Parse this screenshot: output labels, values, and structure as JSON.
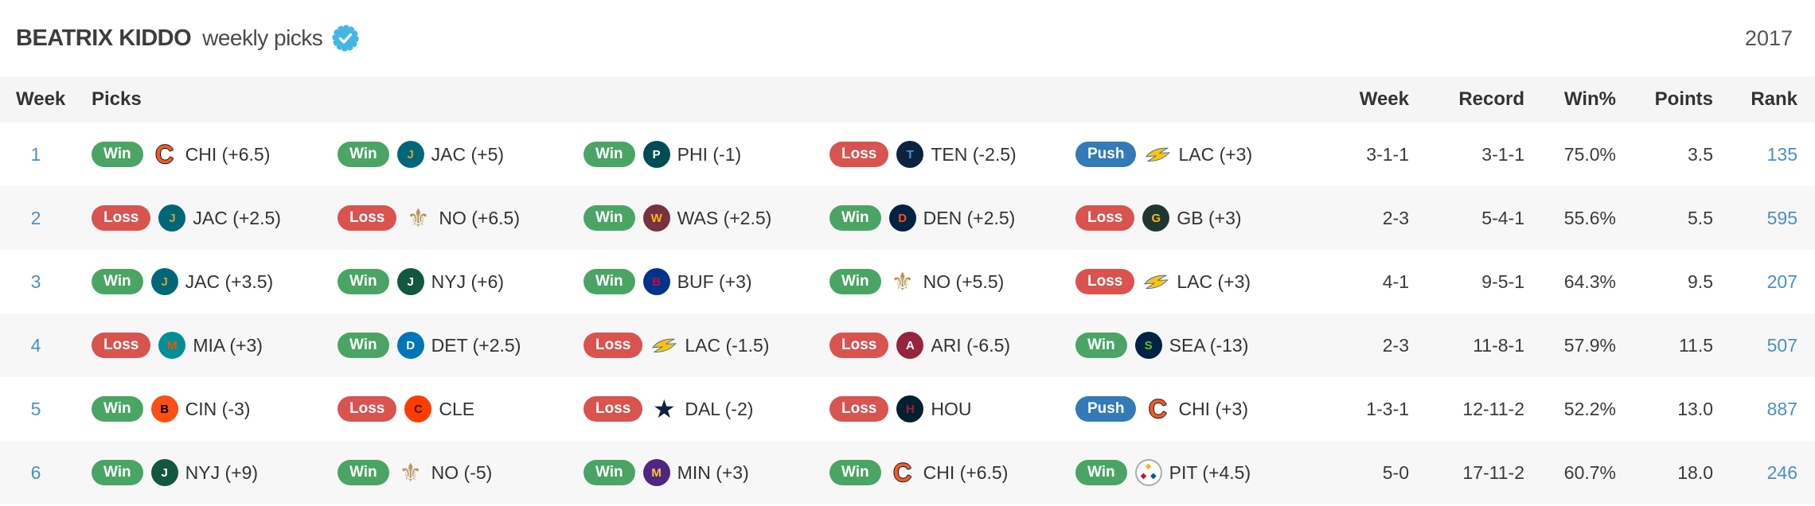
{
  "header": {
    "profile_name": "BEATRIX KIDDO",
    "subtitle": "weekly picks",
    "verified_icon": "verified-checkmark",
    "season_year": "2017"
  },
  "colors": {
    "win": "#4aa564",
    "loss": "#d9534f",
    "push": "#337ab7",
    "link": "#4a90c2",
    "seal_blue": "#41b6e6",
    "stripe": "#f7f7f7",
    "header_bg": "#f5f5f5"
  },
  "table": {
    "left_headers": [
      "Week",
      "Picks"
    ],
    "right_headers": [
      "Week",
      "Record",
      "Win%",
      "Points",
      "Rank"
    ],
    "rows": [
      {
        "week": "1",
        "picks": [
          {
            "result": "Win",
            "team": "CHI",
            "label": "CHI (+6.5)"
          },
          {
            "result": "Win",
            "team": "JAC",
            "label": "JAC (+5)"
          },
          {
            "result": "Win",
            "team": "PHI",
            "label": "PHI (-1)"
          },
          {
            "result": "Loss",
            "team": "TEN",
            "label": "TEN (-2.5)"
          },
          {
            "result": "Push",
            "team": "LAC",
            "label": "LAC (+3)"
          }
        ],
        "stats": {
          "week": "3-1-1",
          "record": "3-1-1",
          "win_pct": "75.0%",
          "points": "3.5",
          "rank": "135"
        }
      },
      {
        "week": "2",
        "picks": [
          {
            "result": "Loss",
            "team": "JAC",
            "label": "JAC (+2.5)"
          },
          {
            "result": "Loss",
            "team": "NO",
            "label": "NO (+6.5)"
          },
          {
            "result": "Win",
            "team": "WAS",
            "label": "WAS (+2.5)"
          },
          {
            "result": "Win",
            "team": "DEN",
            "label": "DEN (+2.5)"
          },
          {
            "result": "Loss",
            "team": "GB",
            "label": "GB (+3)"
          }
        ],
        "stats": {
          "week": "2-3",
          "record": "5-4-1",
          "win_pct": "55.6%",
          "points": "5.5",
          "rank": "595"
        }
      },
      {
        "week": "3",
        "picks": [
          {
            "result": "Win",
            "team": "JAC",
            "label": "JAC (+3.5)"
          },
          {
            "result": "Win",
            "team": "NYJ",
            "label": "NYJ (+6)"
          },
          {
            "result": "Win",
            "team": "BUF",
            "label": "BUF (+3)"
          },
          {
            "result": "Win",
            "team": "NO",
            "label": "NO (+5.5)"
          },
          {
            "result": "Loss",
            "team": "LAC",
            "label": "LAC (+3)"
          }
        ],
        "stats": {
          "week": "4-1",
          "record": "9-5-1",
          "win_pct": "64.3%",
          "points": "9.5",
          "rank": "207"
        }
      },
      {
        "week": "4",
        "picks": [
          {
            "result": "Loss",
            "team": "MIA",
            "label": "MIA (+3)"
          },
          {
            "result": "Win",
            "team": "DET",
            "label": "DET (+2.5)"
          },
          {
            "result": "Loss",
            "team": "LAC",
            "label": "LAC (-1.5)"
          },
          {
            "result": "Loss",
            "team": "ARI",
            "label": "ARI (-6.5)"
          },
          {
            "result": "Win",
            "team": "SEA",
            "label": "SEA (-13)"
          }
        ],
        "stats": {
          "week": "2-3",
          "record": "11-8-1",
          "win_pct": "57.9%",
          "points": "11.5",
          "rank": "507"
        }
      },
      {
        "week": "5",
        "picks": [
          {
            "result": "Win",
            "team": "CIN",
            "label": "CIN (-3)"
          },
          {
            "result": "Loss",
            "team": "CLE",
            "label": "CLE"
          },
          {
            "result": "Loss",
            "team": "DAL",
            "label": "DAL (-2)"
          },
          {
            "result": "Loss",
            "team": "HOU",
            "label": "HOU"
          },
          {
            "result": "Push",
            "team": "CHI",
            "label": "CHI (+3)"
          }
        ],
        "stats": {
          "week": "1-3-1",
          "record": "12-11-2",
          "win_pct": "52.2%",
          "points": "13.0",
          "rank": "887"
        }
      },
      {
        "week": "6",
        "picks": [
          {
            "result": "Win",
            "team": "NYJ",
            "label": "NYJ (+9)"
          },
          {
            "result": "Win",
            "team": "NO",
            "label": "NO (-5)"
          },
          {
            "result": "Win",
            "team": "MIN",
            "label": "MIN (+3)"
          },
          {
            "result": "Win",
            "team": "CHI",
            "label": "CHI (+6.5)"
          },
          {
            "result": "Win",
            "team": "PIT",
            "label": "PIT (+4.5)"
          }
        ],
        "stats": {
          "week": "5-0",
          "record": "17-11-2",
          "win_pct": "60.7%",
          "points": "18.0",
          "rank": "246"
        }
      }
    ]
  },
  "logos": {
    "CHI": {
      "type": "glyph",
      "glyph": "C",
      "fg": "#f15a24",
      "outline": "#0b162a",
      "name": "chicago-bears-logo"
    },
    "JAC": {
      "type": "disc",
      "bg": "#006778",
      "fg": "#d7a22a",
      "glyph": "J",
      "name": "jacksonville-jaguars-logo"
    },
    "PHI": {
      "type": "disc",
      "bg": "#004c54",
      "fg": "#ffffff",
      "glyph": "P",
      "name": "philadelphia-eagles-logo"
    },
    "TEN": {
      "type": "disc",
      "bg": "#0c2340",
      "fg": "#4b92db",
      "glyph": "T",
      "name": "tennessee-titans-logo"
    },
    "LAC": {
      "type": "bolt",
      "fg": "#ffc20e",
      "name": "los-angeles-chargers-logo"
    },
    "NO": {
      "type": "glyph",
      "glyph": "⚜",
      "fg": "#b5985a",
      "name": "new-orleans-saints-logo"
    },
    "WAS": {
      "type": "disc",
      "bg": "#773141",
      "fg": "#ffb612",
      "glyph": "W",
      "name": "washington-redskins-logo"
    },
    "DEN": {
      "type": "disc",
      "bg": "#002244",
      "fg": "#fb4f14",
      "glyph": "D",
      "name": "denver-broncos-logo"
    },
    "GB": {
      "type": "disc",
      "bg": "#203731",
      "fg": "#ffb612",
      "glyph": "G",
      "name": "green-bay-packers-logo"
    },
    "NYJ": {
      "type": "disc",
      "bg": "#125740",
      "fg": "#ffffff",
      "glyph": "J",
      "name": "new-york-jets-logo"
    },
    "BUF": {
      "type": "disc",
      "bg": "#00338d",
      "fg": "#c60c30",
      "glyph": "B",
      "name": "buffalo-bills-logo"
    },
    "MIA": {
      "type": "disc",
      "bg": "#008e97",
      "fg": "#fc4c02",
      "glyph": "M",
      "name": "miami-dolphins-logo"
    },
    "DET": {
      "type": "disc",
      "bg": "#0076b6",
      "fg": "#ffffff",
      "glyph": "D",
      "name": "detroit-lions-logo"
    },
    "ARI": {
      "type": "disc",
      "bg": "#97233f",
      "fg": "#ffffff",
      "glyph": "A",
      "name": "arizona-cardinals-logo"
    },
    "SEA": {
      "type": "disc",
      "bg": "#002244",
      "fg": "#69be28",
      "glyph": "S",
      "name": "seattle-seahawks-logo"
    },
    "CIN": {
      "type": "disc",
      "bg": "#fb4f14",
      "fg": "#000000",
      "glyph": "B",
      "name": "cincinnati-bengals-logo"
    },
    "CLE": {
      "type": "disc",
      "bg": "#ff3c00",
      "fg": "#311d00",
      "glyph": "C",
      "name": "cleveland-browns-logo"
    },
    "DAL": {
      "type": "glyph",
      "glyph": "★",
      "fg": "#0a2342",
      "name": "dallas-cowboys-logo"
    },
    "HOU": {
      "type": "disc",
      "bg": "#03202f",
      "fg": "#a71930",
      "glyph": "H",
      "name": "houston-texans-logo"
    },
    "MIN": {
      "type": "disc",
      "bg": "#4f2683",
      "fg": "#ffc62f",
      "glyph": "M",
      "name": "minnesota-vikings-logo"
    },
    "PIT": {
      "type": "steelmark",
      "name": "pittsburgh-steelers-logo"
    }
  }
}
